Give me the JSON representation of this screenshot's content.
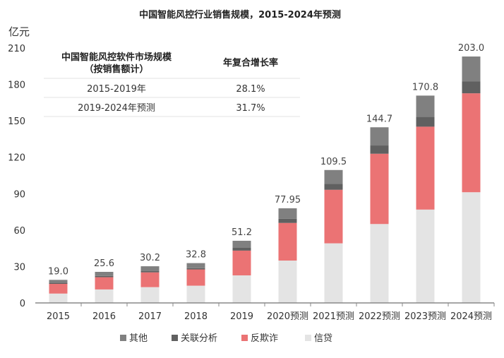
{
  "chart_data": {
    "type": "bar",
    "stacked": true,
    "title": "中国智能风控行业销售规模，2015-2024年预测",
    "ylabel": "亿元",
    "ylim": [
      0,
      210
    ],
    "yticks": [
      0,
      30,
      60,
      90,
      120,
      150,
      180,
      210
    ],
    "grid": false,
    "legend_position": "bottom",
    "categories": [
      "2015",
      "2016",
      "2017",
      "2018",
      "2019",
      "2020预测",
      "2021预测",
      "2022预测",
      "2023预测",
      "2024预测"
    ],
    "totals": [
      "19.0",
      "25.6",
      "30.2",
      "32.8",
      "51.2",
      "77.95",
      "109.5",
      "144.7",
      "170.8",
      "203.0"
    ],
    "series": [
      {
        "name": "信贷",
        "color": "#e4e4e4",
        "values": [
          7.7,
          11.1,
          13.0,
          14.2,
          22.7,
          34.9,
          49.1,
          65.0,
          76.9,
          91.2
        ]
      },
      {
        "name": "反欺诈",
        "color": "#eb7374",
        "values": [
          8.0,
          10.1,
          12.2,
          13.4,
          20.4,
          31.0,
          44.1,
          57.9,
          68.3,
          81.5
        ]
      },
      {
        "name": "关联分析",
        "color": "#606060",
        "values": [
          1.0,
          1.0,
          1.0,
          1.0,
          2.5,
          3.5,
          4.8,
          6.8,
          8.2,
          9.9
        ]
      },
      {
        "name": "其他",
        "color": "#808080",
        "values": [
          2.3,
          3.4,
          4.0,
          4.2,
          5.6,
          8.55,
          11.5,
          15.0,
          17.4,
          20.4
        ]
      }
    ],
    "legend_order": [
      "其他",
      "关联分析",
      "反欺诈",
      "信贷"
    ],
    "table": {
      "headers": [
        "中国智能风控软件市场规模",
        "（按销售额计）",
        "年复合增长率"
      ],
      "rows": [
        [
          "2015-2019年",
          "28.1%"
        ],
        [
          "2019-2024年预测",
          "31.7%"
        ]
      ]
    }
  }
}
